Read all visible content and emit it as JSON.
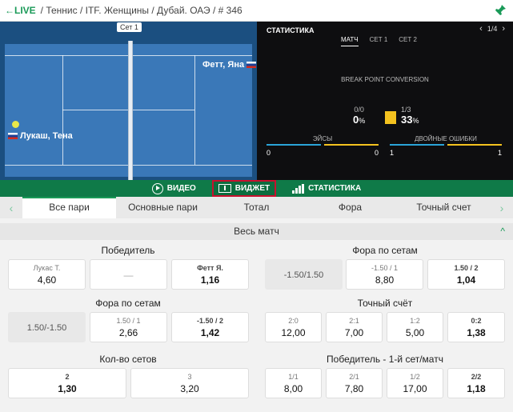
{
  "topbar": {
    "live": "←LIVE",
    "breadcrumb": "/ Теннис / ITF. Женщины / Дубай. ОАЭ / # 346"
  },
  "court": {
    "set_label": "Сет 1",
    "player_top": "Фетт, Яна",
    "player_bottom": "Лукаш, Тена"
  },
  "stats": {
    "title": "СТАТИСТИКА",
    "pager": "1/4",
    "tabs": [
      "МАТЧ",
      "СЕТ 1",
      "СЕТ 2"
    ],
    "bpc_label": "BREAK POINT CONVERSION",
    "bpc_left_frac": "0/0",
    "bpc_left_pct": "0",
    "bpc_right_frac": "1/3",
    "bpc_right_pct": "33",
    "bpc_right_fill": 0.33,
    "pct_sign": "%",
    "aces_label": "ЭЙСЫ",
    "aces_left": "0",
    "aces_right": "0",
    "df_label": "ДВОЙНЫЕ ОШИБКИ",
    "df_left": "1",
    "df_right": "1"
  },
  "switch": {
    "video": "ВИДЕО",
    "widget": "ВИДЖЕТ",
    "statistics": "СТАТИСТИКА"
  },
  "tabs": [
    "Все пари",
    "Основные пари",
    "Тотал",
    "Фора",
    "Точный счет"
  ],
  "section": {
    "title": "Весь матч"
  },
  "markets": {
    "winner": {
      "title": "Победитель",
      "o1_lbl": "Лукас Т.",
      "o1_val": "4,60",
      "o2": "—",
      "o3_lbl": "Фетт Я.",
      "o3_val": "1,16"
    },
    "handicap_sets_r": {
      "title": "Фора по сетам",
      "line": "-1.50/1.50",
      "o1_lbl": "-1.50 / 1",
      "o1_val": "8,80",
      "o2_lbl": "1.50 / 2",
      "o2_val": "1,04"
    },
    "handicap_sets_l": {
      "title": "Фора по сетам",
      "line": "1.50/-1.50",
      "o1_lbl": "1.50 / 1",
      "o1_val": "2,66",
      "o2_lbl": "-1.50 / 2",
      "o2_val": "1,42"
    },
    "exact_score": {
      "title": "Точный счёт",
      "items": [
        {
          "lbl": "2:0",
          "val": "12,00"
        },
        {
          "lbl": "2:1",
          "val": "7,00"
        },
        {
          "lbl": "1:2",
          "val": "5,00"
        },
        {
          "lbl": "0:2",
          "val": "1,38"
        }
      ]
    },
    "num_sets": {
      "title": "Кол-во сетов",
      "o1_lbl": "2",
      "o1_val": "1,30",
      "o2_lbl": "3",
      "o2_val": "3,20"
    },
    "winner_set_match": {
      "title": "Победитель - 1-й сет/матч",
      "items": [
        {
          "lbl": "1/1",
          "val": "8,00"
        },
        {
          "lbl": "2/1",
          "val": "7,80"
        },
        {
          "lbl": "1/2",
          "val": "17,00"
        },
        {
          "lbl": "2/2",
          "val": "1,18"
        }
      ]
    }
  }
}
